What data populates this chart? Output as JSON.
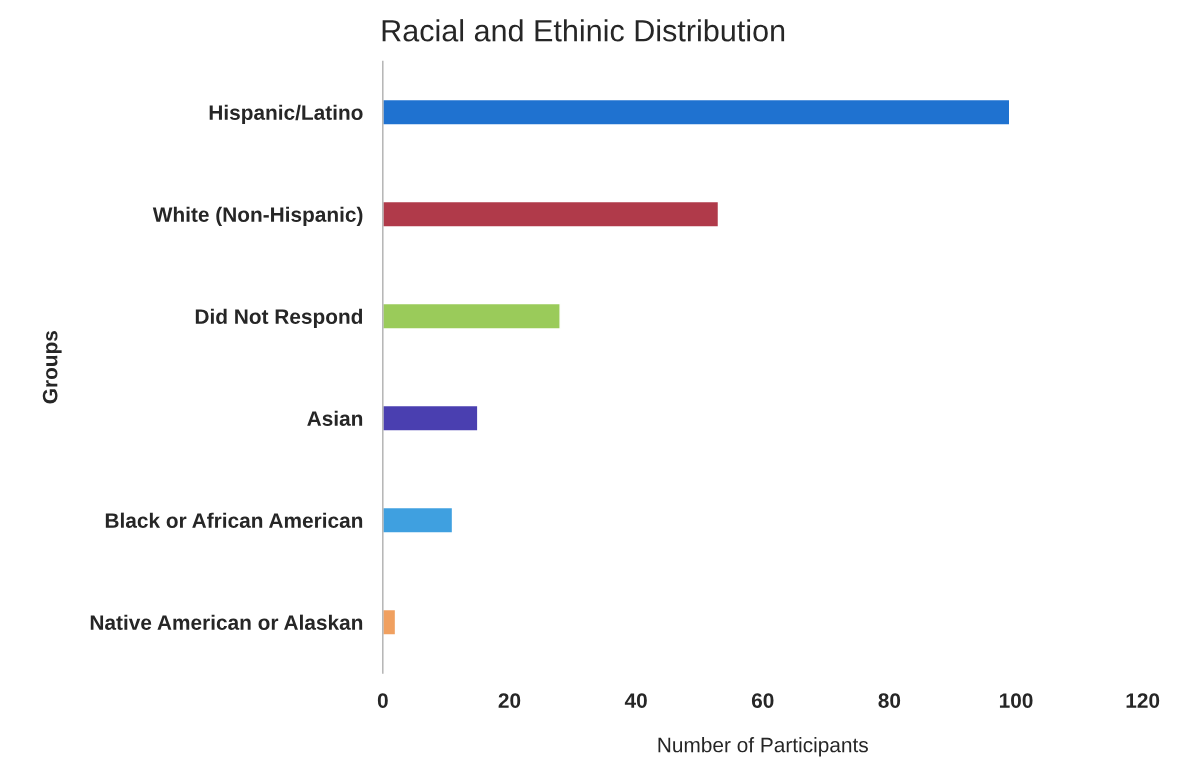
{
  "chart_data": {
    "type": "bar",
    "orientation": "horizontal",
    "title": "Racial and Ethinic Distribution",
    "xlabel": "Number of Participants",
    "ylabel": "Groups",
    "categories": [
      "Hispanic/Latino",
      "White (Non-Hispanic)",
      "Did Not Respond",
      "Asian",
      "Black or African American",
      "Native American or Alaskan"
    ],
    "values": [
      99,
      53,
      28,
      15,
      11,
      2
    ],
    "colors": [
      "#1f72d0",
      "#b03a4a",
      "#9acb5a",
      "#4a3fb0",
      "#3fa0e0",
      "#f0a060"
    ],
    "xlim": [
      0,
      120
    ],
    "xticks": [
      0,
      20,
      40,
      60,
      80,
      100,
      120
    ],
    "grid": false,
    "legend": false
  }
}
